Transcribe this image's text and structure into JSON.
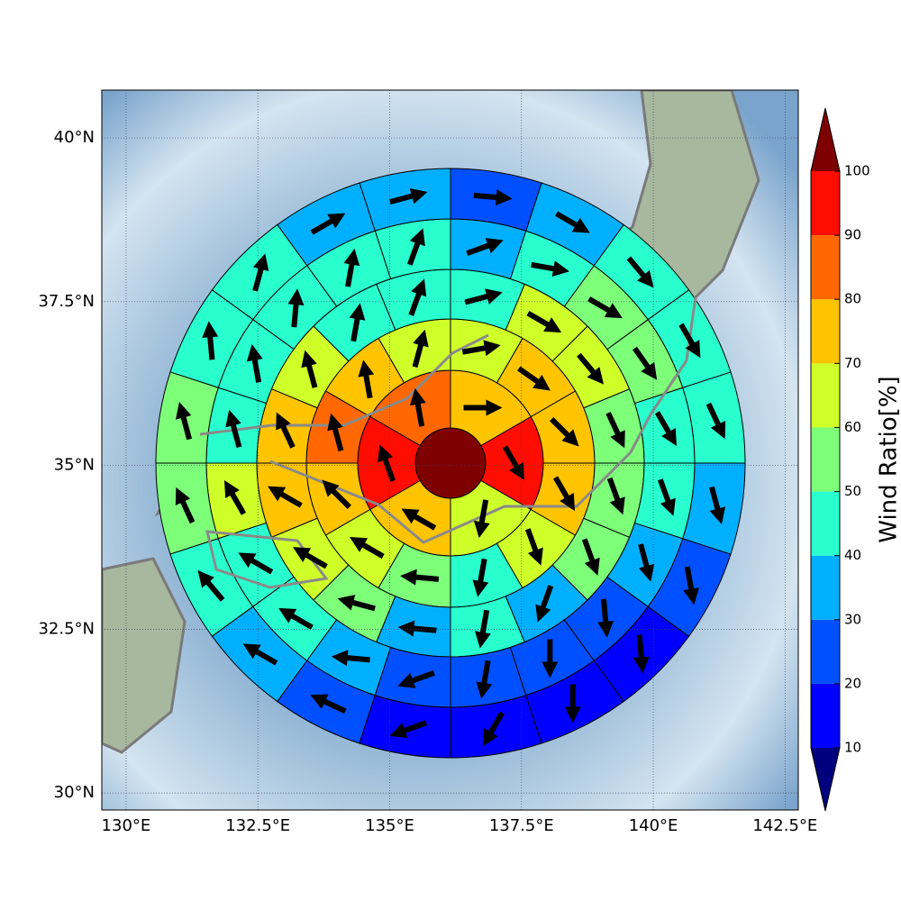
{
  "chart_data": {
    "type": "polar-map",
    "xlim": [
      129.54,
      142.75
    ],
    "ylim": [
      29.74,
      40.73
    ],
    "xticks": [
      {
        "value": 130,
        "label": "130°E"
      },
      {
        "value": 132.5,
        "label": "132.5°E"
      },
      {
        "value": 135,
        "label": "135°E"
      },
      {
        "value": 137.5,
        "label": "137.5°E"
      },
      {
        "value": 140,
        "label": "140°E"
      },
      {
        "value": 142.5,
        "label": "142.5°E"
      }
    ],
    "yticks": [
      {
        "value": 30,
        "label": "30°N"
      },
      {
        "value": 32.5,
        "label": "32.5°N"
      },
      {
        "value": 35,
        "label": "35°N"
      },
      {
        "value": 37.5,
        "label": "37.5°N"
      },
      {
        "value": 40,
        "label": "40°N"
      }
    ],
    "grid": true,
    "center_value": 105,
    "rings": [
      {
        "values": [
          95,
          75,
          85,
          95,
          75,
          65
        ],
        "directions": [
          150,
          90,
          350,
          340,
          300,
          190
        ]
      },
      {
        "values": [
          75,
          75,
          65,
          65,
          75,
          85,
          75,
          65,
          55,
          45,
          65,
          75
        ],
        "directions": [
          135,
          125,
          80,
          15,
          350,
          345,
          315,
          300,
          275,
          190,
          160,
          150
        ]
      },
      {
        "values": [
          55,
          65,
          65,
          45,
          45,
          45,
          65,
          75,
          75,
          65,
          55,
          35,
          45,
          35,
          55,
          55
        ],
        "directions": [
          155,
          140,
          120,
          75,
          20,
          10,
          345,
          335,
          300,
          300,
          285,
          275,
          190,
          200,
          160,
          160
        ]
      },
      {
        "values": [
          45,
          55,
          55,
          45,
          35,
          45,
          45,
          45,
          45,
          45,
          65,
          45,
          45,
          35,
          25,
          25,
          25,
          25,
          35,
          45
        ],
        "directions": [
          150,
          145,
          120,
          100,
          70,
          20,
          10,
          5,
          350,
          345,
          330,
          300,
          300,
          275,
          250,
          190,
          180,
          175,
          165,
          160
        ]
      },
      {
        "values": [
          45,
          45,
          45,
          35,
          25,
          35,
          35,
          45,
          45,
          55,
          55,
          45,
          35,
          25,
          15,
          15,
          15,
          15,
          25,
          35
        ],
        "directions": [
          155,
          150,
          140,
          120,
          95,
          75,
          60,
          15,
          355,
          345,
          335,
          320,
          300,
          295,
          250,
          210,
          180,
          175,
          170,
          165
        ]
      }
    ],
    "colorbar": {
      "label": "Wind Ratio[%]",
      "ticks": [
        10,
        20,
        30,
        40,
        50,
        60,
        70,
        80,
        90,
        100
      ],
      "colors": [
        "#0000ff",
        "#0050ff",
        "#00b0ff",
        "#29ffce",
        "#7dff7a",
        "#ceff29",
        "#ffc400",
        "#ff6800",
        "#ff0d00"
      ],
      "under": "#00007f",
      "over": "#7f0000"
    }
  }
}
